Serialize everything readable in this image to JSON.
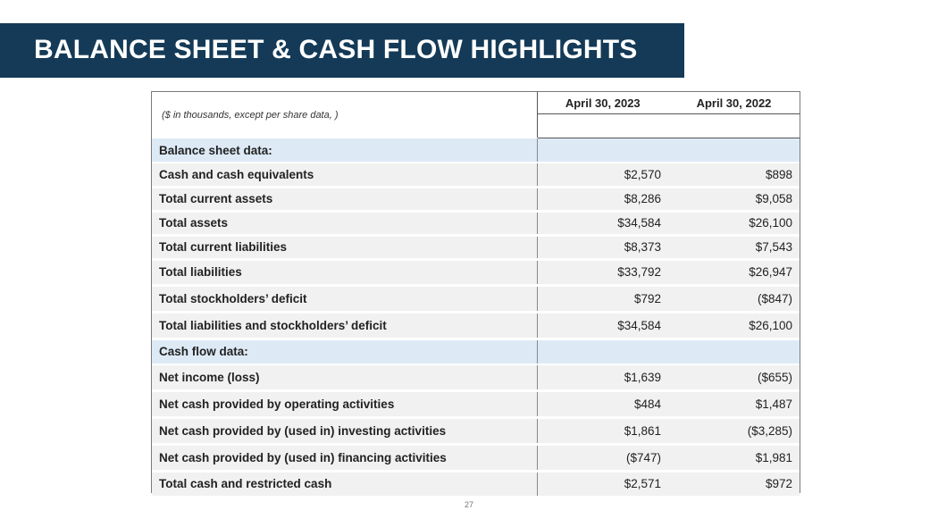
{
  "slide": {
    "title": "BALANCE SHEET & CASH FLOW HIGHLIGHTS",
    "page_number": "27"
  },
  "table": {
    "note": "($ in thousands, except per share data, )",
    "headers": [
      "April 30, 2023",
      "April 30, 2022"
    ],
    "sections": [
      {
        "label": "Balance sheet data:",
        "rows": [
          {
            "label": "Cash and cash equivalents",
            "v1": "$2,570",
            "v2": "$898"
          },
          {
            "label": "Total current assets",
            "v1": "$8,286",
            "v2": "$9,058"
          },
          {
            "label": "Total assets",
            "v1": "$34,584",
            "v2": "$26,100"
          },
          {
            "label": "Total current liabilities",
            "v1": "$8,373",
            "v2": "$7,543"
          },
          {
            "label": "Total liabilities",
            "v1": "$33,792",
            "v2": "$26,947"
          },
          {
            "label": "Total stockholders’ deficit",
            "v1": "$792",
            "v2": "($847)"
          },
          {
            "label": "Total liabilities and stockholders’ deficit",
            "v1": "$34,584",
            "v2": "$26,100"
          }
        ]
      },
      {
        "label": "Cash flow data:",
        "rows": [
          {
            "label": "Net income (loss)",
            "v1": "$1,639",
            "v2": "($655)"
          },
          {
            "label": "Net cash provided by operating activities",
            "v1": "$484",
            "v2": "$1,487"
          },
          {
            "label": "Net cash provided by (used in) investing activities",
            "v1": "$1,861",
            "v2": "($3,285)"
          },
          {
            "label": "Net cash provided by (used in) financing activities",
            "v1": "($747)",
            "v2": "$1,981"
          },
          {
            "label": "Total cash and restricted cash",
            "v1": "$2,571",
            "v2": "$972"
          }
        ]
      }
    ]
  }
}
